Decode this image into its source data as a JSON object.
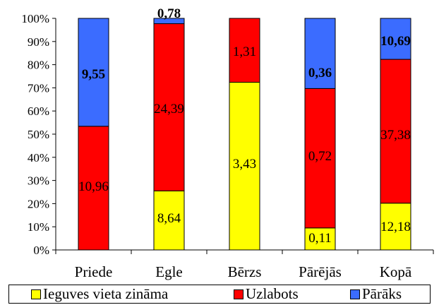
{
  "chart_data": {
    "type": "bar",
    "stacked": true,
    "normalized": true,
    "categories": [
      "Priede",
      "Egle",
      "Bērzs",
      "Pārējās",
      "Kopā"
    ],
    "series": [
      {
        "name": "Ieguves vieta zināma",
        "color": "#ffff00",
        "values": [
          0,
          8.64,
          3.43,
          0.11,
          12.18
        ],
        "percent": [
          0,
          25.5,
          72.4,
          9.5,
          20.2
        ]
      },
      {
        "name": "Uzlabots",
        "color": "#ff0000",
        "values": [
          10.96,
          24.39,
          1.31,
          0.72,
          37.38
        ],
        "percent": [
          53.4,
          72.2,
          27.6,
          60.2,
          62.1
        ]
      },
      {
        "name": "Pārāks",
        "color": "#3b6cff",
        "values": [
          9.55,
          0.78,
          null,
          0.36,
          10.69
        ],
        "percent": [
          46.6,
          2.3,
          0,
          30.3,
          17.7
        ]
      }
    ],
    "data_labels": {
      "Priede": [
        "",
        "10,96",
        "9,55"
      ],
      "Egle": [
        "8,64",
        "24,39",
        "0,78"
      ],
      "Bērzs": [
        "3,43",
        "1,31",
        ""
      ],
      "Pārējās": [
        "0,11",
        "0,72",
        "0,36"
      ],
      "Kopā": [
        "12,18",
        "37,38",
        "10,69"
      ]
    },
    "y_ticks": [
      "0%",
      "10%",
      "20%",
      "30%",
      "40%",
      "50%",
      "60%",
      "70%",
      "80%",
      "90%",
      "100%"
    ],
    "ylim": [
      0,
      100
    ],
    "grid": false,
    "legend_position": "bottom"
  }
}
